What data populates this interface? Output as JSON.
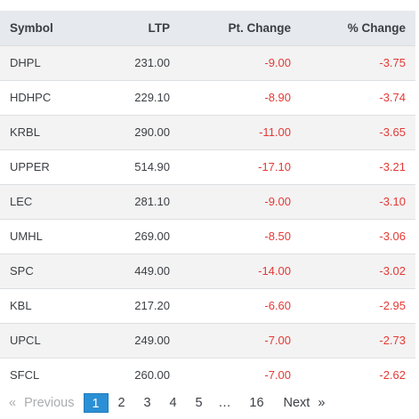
{
  "table": {
    "headers": {
      "symbol": "Symbol",
      "ltp": "LTP",
      "pt_change": "Pt. Change",
      "pct_change": "% Change"
    },
    "rows": [
      {
        "symbol": "DHPL",
        "ltp": "231.00",
        "pt_change": "-9.00",
        "pct_change": "-3.75"
      },
      {
        "symbol": "HDHPC",
        "ltp": "229.10",
        "pt_change": "-8.90",
        "pct_change": "-3.74"
      },
      {
        "symbol": "KRBL",
        "ltp": "290.00",
        "pt_change": "-11.00",
        "pct_change": "-3.65"
      },
      {
        "symbol": "UPPER",
        "ltp": "514.90",
        "pt_change": "-17.10",
        "pct_change": "-3.21"
      },
      {
        "symbol": "LEC",
        "ltp": "281.10",
        "pt_change": "-9.00",
        "pct_change": "-3.10"
      },
      {
        "symbol": "UMHL",
        "ltp": "269.00",
        "pt_change": "-8.50",
        "pct_change": "-3.06"
      },
      {
        "symbol": "SPC",
        "ltp": "449.00",
        "pt_change": "-14.00",
        "pct_change": "-3.02"
      },
      {
        "symbol": "KBL",
        "ltp": "217.20",
        "pt_change": "-6.60",
        "pct_change": "-2.95"
      },
      {
        "symbol": "UPCL",
        "ltp": "249.00",
        "pt_change": "-7.00",
        "pct_change": "-2.73"
      },
      {
        "symbol": "SFCL",
        "ltp": "260.00",
        "pt_change": "-7.00",
        "pct_change": "-2.62"
      }
    ]
  },
  "pagination": {
    "prev_arrow": "«",
    "prev_label": "Previous",
    "pages": [
      "1",
      "2",
      "3",
      "4",
      "5"
    ],
    "ellipsis": "…",
    "last_page": "16",
    "next_label": "Next",
    "next_arrow": "»",
    "current_page": "1"
  },
  "colors": {
    "negative": "#e53935",
    "header_bg": "#e6e9ed",
    "active_page": "#2a8fd4"
  }
}
